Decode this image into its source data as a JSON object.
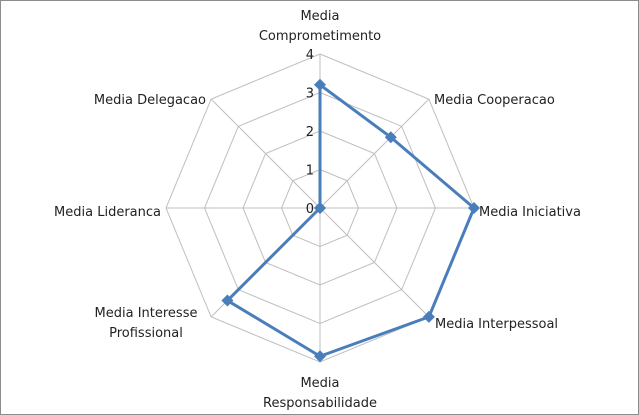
{
  "chart_data": {
    "type": "radar",
    "categories": [
      "Media Comprometimento",
      "Media Cooperacao",
      "Media Iniciativa",
      "Media Interpessoal",
      "Media Responsabilidade",
      "Media Interesse Profissional",
      "Media Lideranca",
      "Media Delegacao"
    ],
    "category_lines": [
      [
        "Media",
        "Comprometimento"
      ],
      [
        "Media Cooperacao"
      ],
      [
        "Media Iniciativa"
      ],
      [
        "Media Interpessoal"
      ],
      [
        "Media",
        "Responsabilidade"
      ],
      [
        "Media Interesse",
        "Profissional"
      ],
      [
        "Media Lideranca"
      ],
      [
        "Media Delegacao"
      ]
    ],
    "values": [
      3.2,
      2.6,
      4.0,
      4.0,
      3.85,
      3.4,
      0,
      0
    ],
    "rlim": [
      0,
      4
    ],
    "ticks": [
      "0",
      "1",
      "2",
      "3",
      "4"
    ],
    "grid": true,
    "legend": "none",
    "series_color": "#4a7ebb",
    "grid_color": "#bfbfbf"
  }
}
